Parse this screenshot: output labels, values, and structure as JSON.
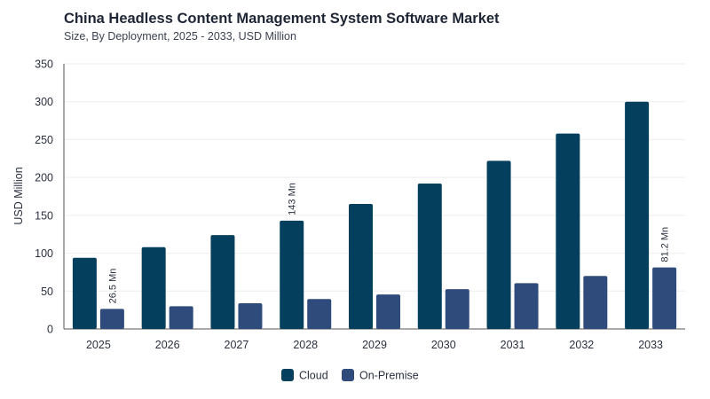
{
  "header": {
    "title": "China Headless Content Management System Software Market",
    "subtitle": "Size, By Deployment, 2025 - 2033, USD Million"
  },
  "colors": {
    "cloud": "#043f5e",
    "on_premise": "#2f4b7c",
    "grid": "#eeeeee",
    "axis": "#555555"
  },
  "chart_data": {
    "type": "bar",
    "title": "China Headless Content Management System Software Market",
    "subtitle": "Size, By Deployment, 2025 - 2033, USD Million",
    "xlabel": "",
    "ylabel": "USD Million",
    "ylim": [
      0,
      350
    ],
    "yticks": [
      0,
      50,
      100,
      150,
      200,
      250,
      300,
      350
    ],
    "categories": [
      "2025",
      "2026",
      "2027",
      "2028",
      "2029",
      "2030",
      "2031",
      "2032",
      "2033"
    ],
    "series": [
      {
        "name": "Cloud",
        "values": [
          94,
          108,
          124,
          143,
          165,
          192,
          222,
          258,
          300
        ]
      },
      {
        "name": "On-Premise",
        "values": [
          26.5,
          30,
          34,
          39.5,
          45.5,
          52.5,
          60.5,
          70,
          81.2
        ]
      }
    ],
    "annotations": [
      {
        "series": 1,
        "index": 0,
        "text": "26.5 Mn"
      },
      {
        "series": 0,
        "index": 3,
        "text": "143 Mn"
      },
      {
        "series": 1,
        "index": 8,
        "text": "81.2 Mn"
      }
    ],
    "grid": true,
    "legend": "bottom-center"
  }
}
